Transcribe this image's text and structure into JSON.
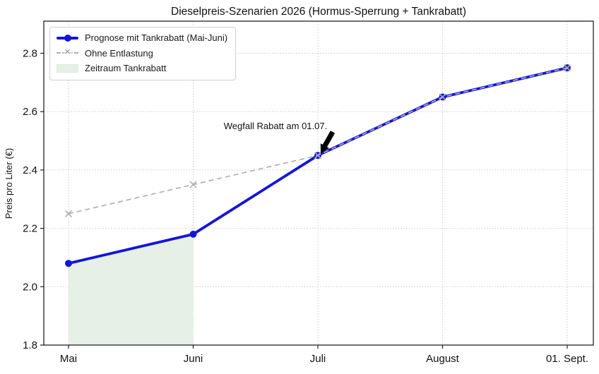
{
  "chart_data": {
    "type": "line",
    "title": "Dieselpreis-Szenarien 2026 (Hormus-Sperrung + Tankrabatt)",
    "ylabel": "Preis pro Liter (€)",
    "xlabel": "",
    "x_categories": [
      "Mai",
      "Juni",
      "Juli",
      "August",
      "01. Sept."
    ],
    "series": [
      {
        "name": "Prognose mit Tankrabatt (Mai-Juni)",
        "values": [
          2.08,
          2.18,
          2.45,
          2.65,
          2.75
        ],
        "color": "#1414dc",
        "style": "solid",
        "marker": "circle"
      },
      {
        "name": "Ohne Entlastung",
        "values": [
          2.25,
          2.35,
          2.45,
          2.65,
          2.75
        ],
        "color": "#b0b0b0",
        "style": "dashed",
        "marker": "x"
      }
    ],
    "shaded_region": {
      "label": "Zeitraum Tankrabatt",
      "from_category": "Mai",
      "to_category": "Juni",
      "color": "#e6f0e6"
    },
    "annotation": {
      "text": "Wegfall Rabatt am 01.07.",
      "target_category": "Juli",
      "target_value": 2.45
    },
    "yticks": [
      1.8,
      2.0,
      2.2,
      2.4,
      2.6,
      2.8
    ],
    "ylim": [
      1.8,
      2.91
    ],
    "grid": true,
    "legend_position": "upper left",
    "colors": {
      "grid": "#c9c9c9",
      "axis": "#222222",
      "text": "#111111",
      "annotation_arrow": "#000000"
    }
  },
  "icons": {
    "x_marker": "✕"
  }
}
